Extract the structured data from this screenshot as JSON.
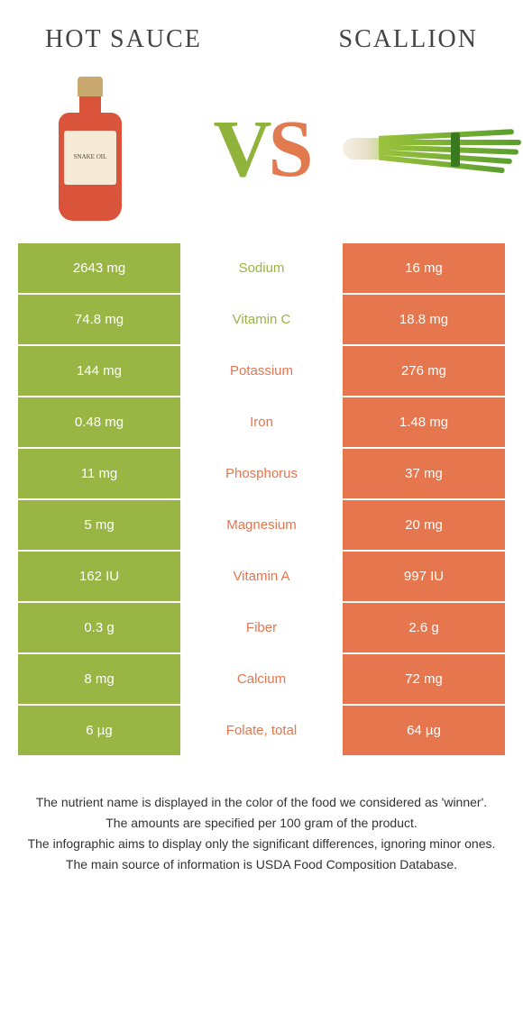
{
  "colors": {
    "green": "#99b544",
    "orange": "#e5764e"
  },
  "header": {
    "left": "Hot sauce",
    "right": "Scallion",
    "vs_v": "V",
    "vs_s": "S"
  },
  "bottle_label": "SNAKE OIL",
  "rows": [
    {
      "left": "2643 mg",
      "mid": "Sodium",
      "right": "16 mg",
      "winner": "left"
    },
    {
      "left": "74.8 mg",
      "mid": "Vitamin C",
      "right": "18.8 mg",
      "winner": "left"
    },
    {
      "left": "144 mg",
      "mid": "Potassium",
      "right": "276 mg",
      "winner": "right"
    },
    {
      "left": "0.48 mg",
      "mid": "Iron",
      "right": "1.48 mg",
      "winner": "right"
    },
    {
      "left": "11 mg",
      "mid": "Phosphorus",
      "right": "37 mg",
      "winner": "right"
    },
    {
      "left": "5 mg",
      "mid": "Magnesium",
      "right": "20 mg",
      "winner": "right"
    },
    {
      "left": "162 IU",
      "mid": "Vitamin A",
      "right": "997 IU",
      "winner": "right"
    },
    {
      "left": "0.3 g",
      "mid": "Fiber",
      "right": "2.6 g",
      "winner": "right"
    },
    {
      "left": "8 mg",
      "mid": "Calcium",
      "right": "72 mg",
      "winner": "right"
    },
    {
      "left": "6 µg",
      "mid": "Folate, total",
      "right": "64 µg",
      "winner": "right"
    }
  ],
  "footnotes": [
    "The nutrient name is displayed in the color of the food we considered as 'winner'.",
    "The amounts are specified per 100 gram of the product.",
    "The infographic aims to display only the significant differences, ignoring minor ones.",
    "The main source of information is USDA Food Composition Database."
  ]
}
